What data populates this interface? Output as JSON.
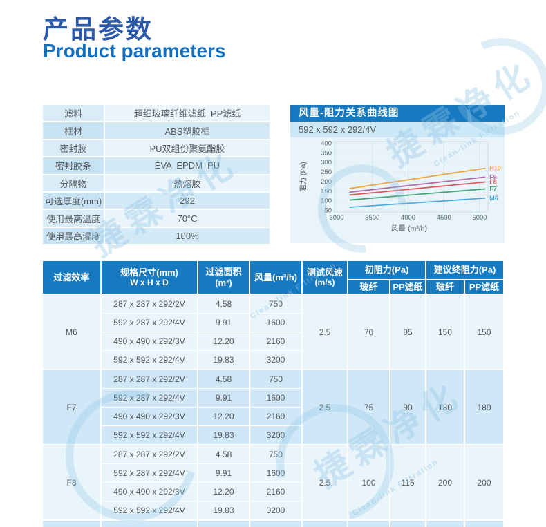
{
  "title": {
    "cn": "产品参数",
    "en": "Product parameters"
  },
  "watermark": {
    "text": "捷霖净化",
    "subtext": "Clean-link Filtration"
  },
  "spec_table": {
    "rows": [
      {
        "label": "滤料",
        "value": "超细玻璃纤维滤纸  PP滤纸"
      },
      {
        "label": "框材",
        "value": "ABS塑胶框"
      },
      {
        "label": "密封胶",
        "value": "PU双组份聚氨酯胶"
      },
      {
        "label": "密封胶条",
        "value": "EVA  EPDM  PU"
      },
      {
        "label": "分隔物",
        "value": "热熔胶"
      },
      {
        "label": "可选厚度(mm)",
        "value": "292"
      },
      {
        "label": "使用最高温度",
        "value": "70°C"
      },
      {
        "label": "使用最高湿度",
        "value": "100%"
      }
    ]
  },
  "chart": {
    "header": "风量-阻力关系曲线图",
    "subtitle": "592 x 592 x 292/4V"
  },
  "chart_data": {
    "type": "line",
    "title": "风量-阻力关系曲线图",
    "subtitle": "592 x 592 x 292/4V",
    "xlabel": "风量 (m³/h)",
    "ylabel": "阻力 (Pa)",
    "xlim": [
      2950,
      5450
    ],
    "ylim": [
      0,
      400
    ],
    "xticks": [
      3000,
      3500,
      4000,
      4500,
      5000
    ],
    "yticks": [
      50,
      100,
      150,
      200,
      250,
      300,
      350,
      400
    ],
    "grid": true,
    "legend_position": "right",
    "x": [
      3180,
      5080
    ],
    "series": [
      {
        "name": "H10",
        "color": "#f0a23c",
        "values": [
          162,
          268
        ]
      },
      {
        "name": "F9",
        "color": "#b266a3",
        "values": [
          143,
          222
        ]
      },
      {
        "name": "F8",
        "color": "#e25757",
        "values": [
          128,
          196
        ]
      },
      {
        "name": "F7",
        "color": "#3fa46f",
        "values": [
          102,
          160
        ]
      },
      {
        "name": "M6",
        "color": "#45aadc",
        "values": [
          64,
          112
        ]
      }
    ]
  },
  "big_table": {
    "headers": {
      "efficiency": "过滤效率",
      "size_line1": "规格尺寸(mm)",
      "size_line2": "W x H x D",
      "area": "过滤面积(m²)",
      "airflow": "风量(m³/h)",
      "speed_line1": "测试风速",
      "speed_line2": "(m/s)",
      "initial": "初阻力(Pa)",
      "final": "建议终阻力(Pa)",
      "glass": "玻纤",
      "pp": "PP滤纸"
    },
    "groups": [
      {
        "efficiency": "M6",
        "rows": [
          {
            "size": "287 x 287 x 292/2V",
            "area": "4.58",
            "airflow": "750"
          },
          {
            "size": "592 x 287 x 292/4V",
            "area": "9.91",
            "airflow": "1600"
          },
          {
            "size": "490 x 490 x 292/3V",
            "area": "12.20",
            "airflow": "2160"
          },
          {
            "size": "592 x 592 x 292/4V",
            "area": "19.83",
            "airflow": "3200"
          }
        ],
        "test_speed": "2.5",
        "initial_glass": "70",
        "initial_pp": "85",
        "final_glass": "150",
        "final_pp": "150"
      },
      {
        "efficiency": "F7",
        "rows": [
          {
            "size": "287 x 287 x 292/2V",
            "area": "4.58",
            "airflow": "750"
          },
          {
            "size": "592 x 287 x 292/4V",
            "area": "9.91",
            "airflow": "1600"
          },
          {
            "size": "490 x 490 x 292/3V",
            "area": "12.20",
            "airflow": "2160"
          },
          {
            "size": "592 x 592 x 292/4V",
            "area": "19.83",
            "airflow": "3200"
          }
        ],
        "test_speed": "2.5",
        "initial_glass": "75",
        "initial_pp": "90",
        "final_glass": "180",
        "final_pp": "180"
      },
      {
        "efficiency": "F8",
        "rows": [
          {
            "size": "287 x 287 x 292/2V",
            "area": "4.58",
            "airflow": "750"
          },
          {
            "size": "592 x 287 x 292/4V",
            "area": "9.91",
            "airflow": "1600"
          },
          {
            "size": "490 x 490 x 292/3V",
            "area": "12.20",
            "airflow": "2160"
          },
          {
            "size": "592 x 592 x 292/4V",
            "area": "19.83",
            "airflow": "3200"
          }
        ],
        "test_speed": "2.5",
        "initial_glass": "100",
        "initial_pp": "115",
        "final_glass": "200",
        "final_pp": "200"
      }
    ]
  },
  "colors": {
    "header_blue": "#1779bf",
    "title_dark_blue": "#2a59a9",
    "title_blue": "#1470bf",
    "group_light": "#e9f4fb",
    "group_dark": "#cfe7f6"
  }
}
